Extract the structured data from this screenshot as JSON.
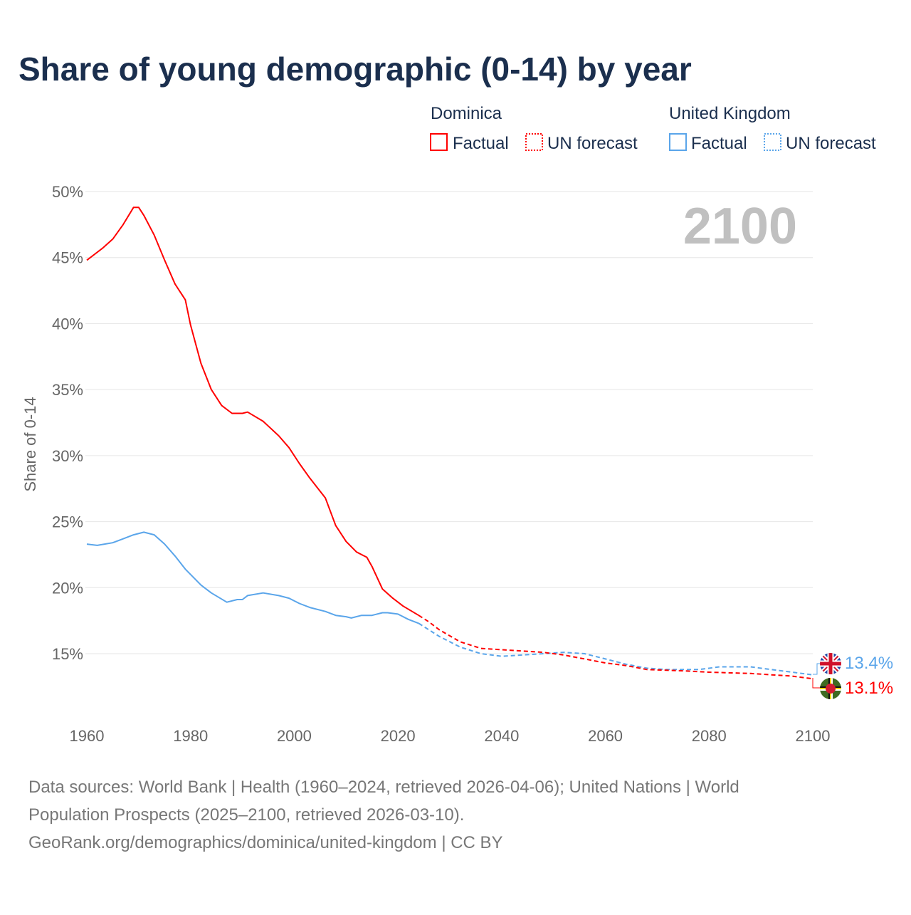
{
  "chart_data": {
    "type": "line",
    "title": "Share of young demographic (0-14) by year",
    "ylabel": "Share of 0-14",
    "xlabel": "",
    "xlim": [
      1960,
      2100
    ],
    "ylim": [
      10,
      50
    ],
    "x_ticks": [
      "1960",
      "1980",
      "2000",
      "2020",
      "2040",
      "2060",
      "2080",
      "2100"
    ],
    "y_ticks": [
      "15%",
      "20%",
      "25%",
      "30%",
      "35%",
      "40%",
      "45%",
      "50%"
    ],
    "y_tick_values": [
      15,
      20,
      25,
      30,
      35,
      40,
      45,
      50
    ],
    "x_tick_values": [
      1960,
      1980,
      2000,
      2020,
      2040,
      2060,
      2080,
      2100
    ],
    "year_overlay": "2100",
    "grid": true,
    "legend": {
      "placement": "top-right",
      "groups": [
        {
          "name": "Dominica",
          "factual": "Factual",
          "forecast": "UN forecast"
        },
        {
          "name": "United Kingdom",
          "factual": "Factual",
          "forecast": "UN forecast"
        }
      ]
    },
    "series": [
      {
        "name": "Dominica",
        "color": "#ff0000",
        "end_label": "13.1%",
        "flag": "dominica-flag",
        "factual": [
          [
            1960,
            44.8
          ],
          [
            1963,
            45.7
          ],
          [
            1965,
            46.4
          ],
          [
            1967,
            47.5
          ],
          [
            1969,
            48.8
          ],
          [
            1970,
            48.8
          ],
          [
            1971,
            48.2
          ],
          [
            1973,
            46.7
          ],
          [
            1975,
            44.8
          ],
          [
            1977,
            43.0
          ],
          [
            1979,
            41.8
          ],
          [
            1980,
            39.9
          ],
          [
            1982,
            37.0
          ],
          [
            1984,
            35.0
          ],
          [
            1986,
            33.8
          ],
          [
            1988,
            33.2
          ],
          [
            1990,
            33.2
          ],
          [
            1991,
            33.3
          ],
          [
            1994,
            32.6
          ],
          [
            1997,
            31.5
          ],
          [
            1999,
            30.6
          ],
          [
            2001,
            29.4
          ],
          [
            2003,
            28.3
          ],
          [
            2006,
            26.8
          ],
          [
            2008,
            24.7
          ],
          [
            2010,
            23.5
          ],
          [
            2012,
            22.7
          ],
          [
            2014,
            22.3
          ],
          [
            2015,
            21.6
          ],
          [
            2017,
            19.9
          ],
          [
            2019,
            19.2
          ],
          [
            2021,
            18.6
          ],
          [
            2024,
            17.9
          ]
        ],
        "forecast": [
          [
            2024,
            17.9
          ],
          [
            2026,
            17.4
          ],
          [
            2028,
            16.8
          ],
          [
            2032,
            15.9
          ],
          [
            2036,
            15.4
          ],
          [
            2040,
            15.3
          ],
          [
            2044,
            15.2
          ],
          [
            2048,
            15.1
          ],
          [
            2052,
            14.9
          ],
          [
            2056,
            14.6
          ],
          [
            2060,
            14.3
          ],
          [
            2064,
            14.1
          ],
          [
            2068,
            13.8
          ],
          [
            2075,
            13.7
          ],
          [
            2080,
            13.6
          ],
          [
            2088,
            13.5
          ],
          [
            2092,
            13.4
          ],
          [
            2096,
            13.3
          ],
          [
            2100,
            13.1
          ]
        ]
      },
      {
        "name": "United Kingdom",
        "color": "#5aa5ea",
        "end_label": "13.4%",
        "flag": "uk-flag",
        "factual": [
          [
            1960,
            23.3
          ],
          [
            1962,
            23.2
          ],
          [
            1965,
            23.4
          ],
          [
            1967,
            23.7
          ],
          [
            1969,
            24.0
          ],
          [
            1971,
            24.2
          ],
          [
            1973,
            24.0
          ],
          [
            1975,
            23.3
          ],
          [
            1977,
            22.4
          ],
          [
            1979,
            21.4
          ],
          [
            1982,
            20.2
          ],
          [
            1984,
            19.6
          ],
          [
            1987,
            18.9
          ],
          [
            1989,
            19.1
          ],
          [
            1990,
            19.1
          ],
          [
            1991,
            19.4
          ],
          [
            1994,
            19.6
          ],
          [
            1997,
            19.4
          ],
          [
            1999,
            19.2
          ],
          [
            2001,
            18.8
          ],
          [
            2003,
            18.5
          ],
          [
            2006,
            18.2
          ],
          [
            2008,
            17.9
          ],
          [
            2010,
            17.8
          ],
          [
            2011,
            17.7
          ],
          [
            2013,
            17.9
          ],
          [
            2015,
            17.9
          ],
          [
            2017,
            18.1
          ],
          [
            2018,
            18.1
          ],
          [
            2020,
            18.0
          ],
          [
            2022,
            17.6
          ],
          [
            2024,
            17.3
          ]
        ],
        "forecast": [
          [
            2024,
            17.3
          ],
          [
            2028,
            16.3
          ],
          [
            2032,
            15.5
          ],
          [
            2036,
            15.0
          ],
          [
            2040,
            14.8
          ],
          [
            2044,
            14.9
          ],
          [
            2048,
            15.0
          ],
          [
            2052,
            15.1
          ],
          [
            2056,
            15.0
          ],
          [
            2060,
            14.6
          ],
          [
            2064,
            14.2
          ],
          [
            2068,
            13.9
          ],
          [
            2072,
            13.8
          ],
          [
            2078,
            13.8
          ],
          [
            2082,
            14.0
          ],
          [
            2088,
            14.0
          ],
          [
            2092,
            13.8
          ],
          [
            2096,
            13.6
          ],
          [
            2100,
            13.4
          ]
        ]
      }
    ]
  },
  "footer": {
    "line1": "Data sources: World Bank | Health (1960–2024, retrieved 2026-04-06); United Nations | World",
    "line2": "Population Prospects (2025–2100, retrieved 2026-03-10).",
    "line3": "GeoRank.org/demographics/dominica/united-kingdom | CC BY"
  }
}
